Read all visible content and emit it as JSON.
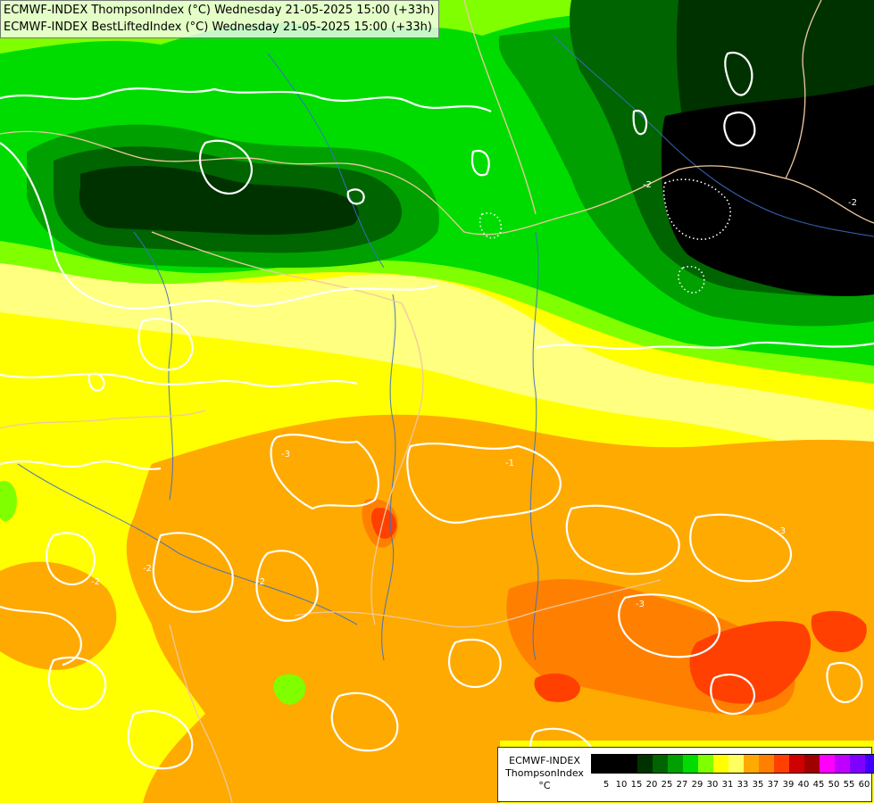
{
  "titles": {
    "line1": "ECMWF-INDEX ThompsonIndex (°C) Wednesday 21-05-2025 15:00 (+33h)",
    "line2": "ECMWF-INDEX BestLiftedIndex (°C) Wednesday 21-05-2025 15:00 (+33h)"
  },
  "legend": {
    "model": "ECMWF-INDEX",
    "parameter": "ThompsonIndex",
    "unit": "°C",
    "ticks": [
      "5",
      "10",
      "15",
      "20",
      "25",
      "27",
      "29",
      "30",
      "31",
      "33",
      "35",
      "37",
      "39",
      "40",
      "45",
      "50",
      "55",
      "60"
    ],
    "colors": [
      "#000000",
      "#000000",
      "#000000",
      "#003200",
      "#006400",
      "#00a000",
      "#00dc00",
      "#80ff00",
      "#ffff00",
      "#ffff60",
      "#ffaa00",
      "#ff8000",
      "#ff4000",
      "#d00000",
      "#a00000",
      "#ff00ff",
      "#c000ff",
      "#8000ff",
      "#4000ff",
      "#0000ff"
    ]
  },
  "palette": {
    "black": "#000000",
    "dark_green": "#003200",
    "green": "#006400",
    "mid_green": "#00a000",
    "bright_green": "#00dc00",
    "lime": "#80ff00",
    "pale_yellow": "#ffff80",
    "yellow": "#ffff00",
    "orange": "#ffaa00",
    "dark_orange": "#ff8000",
    "red_orange": "#ff4000",
    "contour": "#ffffff",
    "border": "#f0c8a0",
    "river": "#3c6ec8"
  },
  "contour_labels": [
    "-2",
    "-2",
    "-2",
    "-3",
    "-3",
    "-3",
    "-2",
    "-1",
    "-2"
  ]
}
